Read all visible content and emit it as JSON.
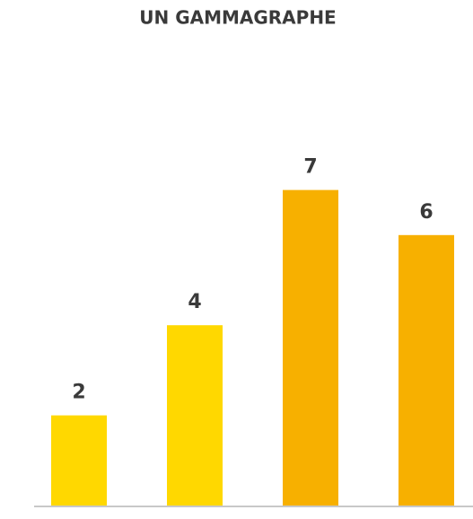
{
  "chart_data": {
    "type": "bar",
    "title": "UN GAMMAGRAPHE",
    "values": [
      2,
      4,
      7,
      6
    ],
    "colors": [
      "#ffd800",
      "#ffd800",
      "#f7b000",
      "#f7b000"
    ]
  }
}
